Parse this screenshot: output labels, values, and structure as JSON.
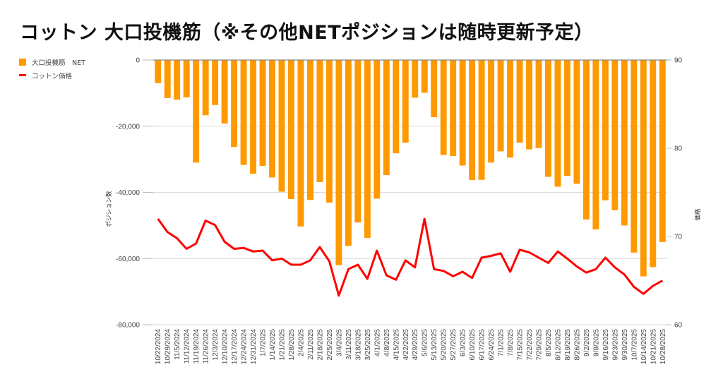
{
  "title": "コットン 大口投機筋（※その他NETポジションは随時更新予定）",
  "chart_data": {
    "type": "bar+line",
    "title": "コットン 大口投機筋（※その他NETポジションは随時更新予定）",
    "legend_position": "top-left",
    "legend": [
      "大口投機筋　NET",
      "コットン価格"
    ],
    "left_axis": {
      "label": "ポジション数",
      "range": [
        -80000,
        0
      ],
      "ticks": [
        "0",
        "-20,000",
        "-40,000",
        "-60,000",
        "-80,000"
      ],
      "tick_values": [
        0,
        -20000,
        -40000,
        -60000,
        -80000
      ]
    },
    "right_axis": {
      "label": "価格",
      "range": [
        60,
        90
      ],
      "ticks": [
        "90",
        "80",
        "70",
        "60"
      ],
      "tick_values": [
        90,
        80,
        70,
        60
      ]
    },
    "grid": true,
    "categories": [
      "10/22/2024",
      "10/29/2024",
      "11/5/2024",
      "11/12/2024",
      "11/19/2024",
      "11/26/2024",
      "12/3/2024",
      "12/10/2024",
      "12/17/2024",
      "12/24/2024",
      "12/31/2024",
      "1/7/2025",
      "1/14/2025",
      "1/21/2025",
      "1/28/2025",
      "2/4/2025",
      "2/11/2025",
      "2/18/2025",
      "2/25/2025",
      "3/4/2025",
      "3/11/2025",
      "3/18/2025",
      "3/25/2025",
      "4/1/2025",
      "4/8/2025",
      "4/15/2025",
      "4/22/2025",
      "4/29/2025",
      "5/6/2025",
      "5/13/2025",
      "5/20/2025",
      "5/27/2025",
      "6/3/2025",
      "6/10/2025",
      "6/17/2025",
      "6/24/2025",
      "7/1/2025",
      "7/8/2025",
      "7/15/2025",
      "7/22/2025",
      "7/29/2025",
      "8/5/2025",
      "8/12/2025",
      "8/19/2025",
      "8/26/2025",
      "9/2/2025",
      "9/9/2025",
      "9/16/2025",
      "9/23/2025",
      "9/30/2025",
      "10/7/2025",
      "10/14/2025",
      "10/21/2025",
      "10/28/2025"
    ],
    "series": [
      {
        "name": "大口投機筋　NET",
        "type": "bar",
        "axis": "left",
        "color": "#ff9900",
        "values": [
          -7000,
          -11500,
          -12000,
          -11300,
          -31000,
          -16700,
          -13600,
          -19200,
          -26300,
          -31700,
          -34400,
          -32000,
          -35500,
          -39800,
          -42000,
          -50300,
          -42300,
          -36900,
          -43100,
          -62000,
          -56200,
          -49100,
          -53800,
          -41900,
          -34800,
          -28200,
          -25000,
          -11400,
          -9900,
          -17300,
          -28700,
          -29000,
          -31900,
          -36300,
          -36200,
          -31000,
          -27600,
          -29500,
          -25000,
          -27000,
          -26600,
          -35300,
          -38300,
          -35000,
          -37400,
          -48200,
          -51200,
          -42400,
          -45400,
          -50000,
          -58200,
          -65400,
          -62600,
          -55000
        ]
      },
      {
        "name": "コットン価格",
        "type": "line",
        "axis": "right",
        "color": "#ff0000",
        "values": [
          72.0,
          70.5,
          69.8,
          68.6,
          69.2,
          71.8,
          71.3,
          69.4,
          68.6,
          68.7,
          68.3,
          68.4,
          67.3,
          67.5,
          66.8,
          66.8,
          67.3,
          68.8,
          67.2,
          63.3,
          66.3,
          66.8,
          65.2,
          68.4,
          65.6,
          65.1,
          67.3,
          66.5,
          72.0,
          66.3,
          66.1,
          65.5,
          66.0,
          65.3,
          67.6,
          67.8,
          68.1,
          66.0,
          68.5,
          68.2,
          67.6,
          67.0,
          68.3,
          67.5,
          66.6,
          65.9,
          66.3,
          67.6,
          66.5,
          65.7,
          64.3,
          63.5,
          64.4,
          65.0
        ]
      }
    ]
  }
}
